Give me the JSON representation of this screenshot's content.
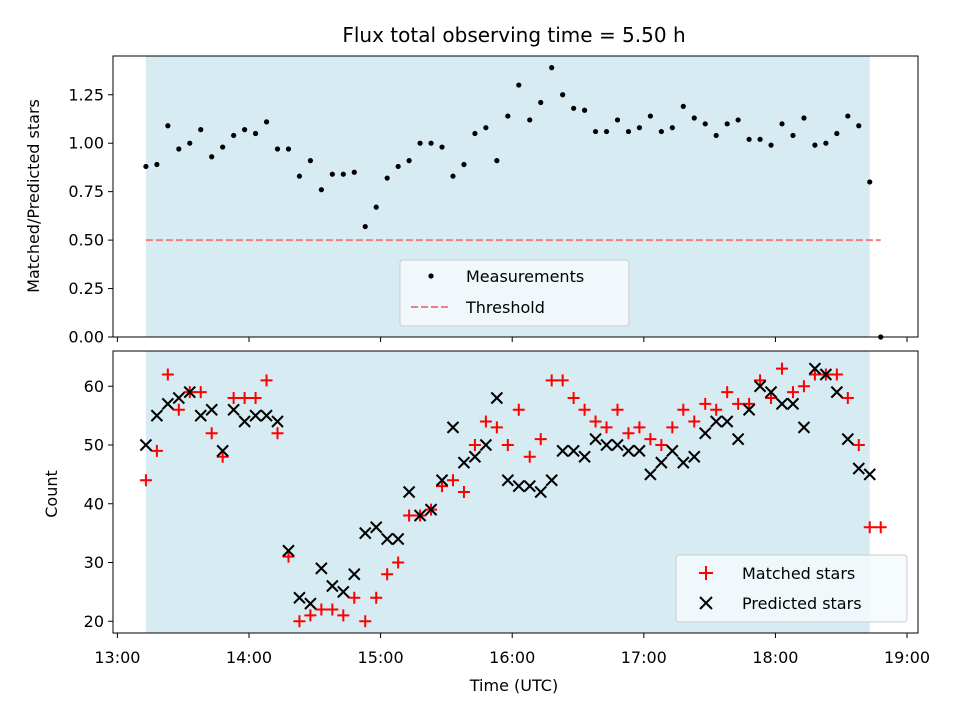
{
  "chart_data": [
    {
      "type": "scatter",
      "title": "Flux total observing time = 5.50 h",
      "ylabel": "Matched/Predicted stars",
      "xlabel": "",
      "xlim": [
        "12:58",
        "19:05"
      ],
      "ylim": [
        0,
        1.45
      ],
      "yticks": [
        "0.00",
        "0.25",
        "0.50",
        "0.75",
        "1.00",
        "1.25"
      ],
      "shaded_span": [
        "13:13",
        "18:43"
      ],
      "shade_color": "#add8e6",
      "threshold": 0.5,
      "threshold_x": [
        "13:13",
        "18:48"
      ],
      "threshold_color": "#f08080",
      "legend_position": "lower-center",
      "legend": [
        "Measurements",
        "Threshold"
      ],
      "series": [
        {
          "name": "Measurements",
          "marker": "dot",
          "color": "#000000",
          "points": [
            [
              "13:13",
              0.88
            ],
            [
              "13:18",
              0.89
            ],
            [
              "13:23",
              1.09
            ],
            [
              "13:28",
              0.97
            ],
            [
              "13:33",
              1.0
            ],
            [
              "13:38",
              1.07
            ],
            [
              "13:43",
              0.93
            ],
            [
              "13:48",
              0.98
            ],
            [
              "13:53",
              1.04
            ],
            [
              "13:58",
              1.07
            ],
            [
              "14:03",
              1.05
            ],
            [
              "14:08",
              1.11
            ],
            [
              "14:13",
              0.97
            ],
            [
              "14:18",
              0.97
            ],
            [
              "14:23",
              0.83
            ],
            [
              "14:28",
              0.91
            ],
            [
              "14:33",
              0.76
            ],
            [
              "14:38",
              0.84
            ],
            [
              "14:43",
              0.84
            ],
            [
              "14:48",
              0.85
            ],
            [
              "14:53",
              0.57
            ],
            [
              "14:58",
              0.67
            ],
            [
              "15:03",
              0.82
            ],
            [
              "15:08",
              0.88
            ],
            [
              "15:13",
              0.91
            ],
            [
              "15:18",
              1.0
            ],
            [
              "15:23",
              1.0
            ],
            [
              "15:28",
              0.98
            ],
            [
              "15:33",
              0.83
            ],
            [
              "15:38",
              0.89
            ],
            [
              "15:43",
              1.05
            ],
            [
              "15:48",
              1.08
            ],
            [
              "15:53",
              0.91
            ],
            [
              "15:58",
              1.14
            ],
            [
              "16:03",
              1.3
            ],
            [
              "16:08",
              1.12
            ],
            [
              "16:13",
              1.21
            ],
            [
              "16:18",
              1.39
            ],
            [
              "16:23",
              1.25
            ],
            [
              "16:28",
              1.18
            ],
            [
              "16:33",
              1.17
            ],
            [
              "16:38",
              1.06
            ],
            [
              "16:43",
              1.06
            ],
            [
              "16:48",
              1.12
            ],
            [
              "16:53",
              1.06
            ],
            [
              "16:58",
              1.08
            ],
            [
              "17:03",
              1.14
            ],
            [
              "17:08",
              1.06
            ],
            [
              "17:13",
              1.08
            ],
            [
              "17:18",
              1.19
            ],
            [
              "17:23",
              1.13
            ],
            [
              "17:28",
              1.1
            ],
            [
              "17:33",
              1.04
            ],
            [
              "17:38",
              1.1
            ],
            [
              "17:43",
              1.12
            ],
            [
              "17:48",
              1.02
            ],
            [
              "17:53",
              1.02
            ],
            [
              "17:58",
              0.99
            ],
            [
              "18:03",
              1.1
            ],
            [
              "18:08",
              1.04
            ],
            [
              "18:13",
              1.13
            ],
            [
              "18:18",
              0.99
            ],
            [
              "18:23",
              1.0
            ],
            [
              "18:28",
              1.05
            ],
            [
              "18:33",
              1.14
            ],
            [
              "18:38",
              1.09
            ],
            [
              "18:43",
              0.8
            ],
            [
              "18:48",
              0.0
            ]
          ]
        }
      ]
    },
    {
      "type": "scatter",
      "title": "",
      "ylabel": "Count",
      "xlabel": "Time (UTC)",
      "xlim": [
        "12:58",
        "19:05"
      ],
      "ylim": [
        18,
        66
      ],
      "yticks": [
        "20",
        "30",
        "40",
        "50",
        "60"
      ],
      "xticks": [
        "13:00",
        "14:00",
        "15:00",
        "16:00",
        "17:00",
        "18:00",
        "19:00"
      ],
      "shaded_span": [
        "13:13",
        "18:43"
      ],
      "shade_color": "#add8e6",
      "legend_position": "lower-right",
      "legend": [
        "Matched stars",
        "Predicted stars"
      ],
      "series": [
        {
          "name": "Matched stars",
          "marker": "plus",
          "color": "#ff0000",
          "points": [
            [
              "13:13",
              44
            ],
            [
              "13:18",
              49
            ],
            [
              "13:23",
              62
            ],
            [
              "13:28",
              56
            ],
            [
              "13:33",
              59
            ],
            [
              "13:38",
              59
            ],
            [
              "13:43",
              52
            ],
            [
              "13:48",
              48
            ],
            [
              "13:53",
              58
            ],
            [
              "13:58",
              58
            ],
            [
              "14:03",
              58
            ],
            [
              "14:08",
              61
            ],
            [
              "14:13",
              52
            ],
            [
              "14:18",
              31
            ],
            [
              "14:23",
              20
            ],
            [
              "14:28",
              21
            ],
            [
              "14:33",
              22
            ],
            [
              "14:38",
              22
            ],
            [
              "14:43",
              21
            ],
            [
              "14:48",
              24
            ],
            [
              "14:53",
              20
            ],
            [
              "14:58",
              24
            ],
            [
              "15:03",
              28
            ],
            [
              "15:08",
              30
            ],
            [
              "15:13",
              38
            ],
            [
              "15:18",
              38
            ],
            [
              "15:23",
              39
            ],
            [
              "15:28",
              43
            ],
            [
              "15:33",
              44
            ],
            [
              "15:38",
              42
            ],
            [
              "15:43",
              50
            ],
            [
              "15:48",
              54
            ],
            [
              "15:53",
              53
            ],
            [
              "15:58",
              50
            ],
            [
              "16:03",
              56
            ],
            [
              "16:08",
              48
            ],
            [
              "16:13",
              51
            ],
            [
              "16:18",
              61
            ],
            [
              "16:23",
              61
            ],
            [
              "16:28",
              58
            ],
            [
              "16:33",
              56
            ],
            [
              "16:38",
              54
            ],
            [
              "16:43",
              53
            ],
            [
              "16:48",
              56
            ],
            [
              "16:53",
              52
            ],
            [
              "16:58",
              53
            ],
            [
              "17:03",
              51
            ],
            [
              "17:08",
              50
            ],
            [
              "17:13",
              53
            ],
            [
              "17:18",
              56
            ],
            [
              "17:23",
              54
            ],
            [
              "17:28",
              57
            ],
            [
              "17:33",
              56
            ],
            [
              "17:38",
              59
            ],
            [
              "17:43",
              57
            ],
            [
              "17:48",
              57
            ],
            [
              "17:53",
              61
            ],
            [
              "17:58",
              58
            ],
            [
              "18:03",
              63
            ],
            [
              "18:08",
              59
            ],
            [
              "18:13",
              60
            ],
            [
              "18:18",
              62
            ],
            [
              "18:23",
              62
            ],
            [
              "18:28",
              62
            ],
            [
              "18:33",
              58
            ],
            [
              "18:38",
              50
            ],
            [
              "18:43",
              36
            ],
            [
              "18:48",
              36
            ]
          ]
        },
        {
          "name": "Predicted stars",
          "marker": "x",
          "color": "#000000",
          "points": [
            [
              "13:13",
              50
            ],
            [
              "13:18",
              55
            ],
            [
              "13:23",
              57
            ],
            [
              "13:28",
              58
            ],
            [
              "13:33",
              59
            ],
            [
              "13:38",
              55
            ],
            [
              "13:43",
              56
            ],
            [
              "13:48",
              49
            ],
            [
              "13:53",
              56
            ],
            [
              "13:58",
              54
            ],
            [
              "14:03",
              55
            ],
            [
              "14:08",
              55
            ],
            [
              "14:13",
              54
            ],
            [
              "14:18",
              32
            ],
            [
              "14:23",
              24
            ],
            [
              "14:28",
              23
            ],
            [
              "14:33",
              29
            ],
            [
              "14:38",
              26
            ],
            [
              "14:43",
              25
            ],
            [
              "14:48",
              28
            ],
            [
              "14:53",
              35
            ],
            [
              "14:58",
              36
            ],
            [
              "15:03",
              34
            ],
            [
              "15:08",
              34
            ],
            [
              "15:13",
              42
            ],
            [
              "15:18",
              38
            ],
            [
              "15:23",
              39
            ],
            [
              "15:28",
              44
            ],
            [
              "15:33",
              53
            ],
            [
              "15:38",
              47
            ],
            [
              "15:43",
              48
            ],
            [
              "15:48",
              50
            ],
            [
              "15:53",
              58
            ],
            [
              "15:58",
              44
            ],
            [
              "16:03",
              43
            ],
            [
              "16:08",
              43
            ],
            [
              "16:13",
              42
            ],
            [
              "16:18",
              44
            ],
            [
              "16:23",
              49
            ],
            [
              "16:28",
              49
            ],
            [
              "16:33",
              48
            ],
            [
              "16:38",
              51
            ],
            [
              "16:43",
              50
            ],
            [
              "16:48",
              50
            ],
            [
              "16:53",
              49
            ],
            [
              "16:58",
              49
            ],
            [
              "17:03",
              45
            ],
            [
              "17:08",
              47
            ],
            [
              "17:13",
              49
            ],
            [
              "17:18",
              47
            ],
            [
              "17:23",
              48
            ],
            [
              "17:28",
              52
            ],
            [
              "17:33",
              54
            ],
            [
              "17:38",
              54
            ],
            [
              "17:43",
              51
            ],
            [
              "17:48",
              56
            ],
            [
              "17:53",
              60
            ],
            [
              "17:58",
              59
            ],
            [
              "18:03",
              57
            ],
            [
              "18:08",
              57
            ],
            [
              "18:13",
              53
            ],
            [
              "18:18",
              63
            ],
            [
              "18:23",
              62
            ],
            [
              "18:28",
              59
            ],
            [
              "18:33",
              51
            ],
            [
              "18:38",
              46
            ],
            [
              "18:43",
              45
            ]
          ]
        }
      ]
    }
  ]
}
